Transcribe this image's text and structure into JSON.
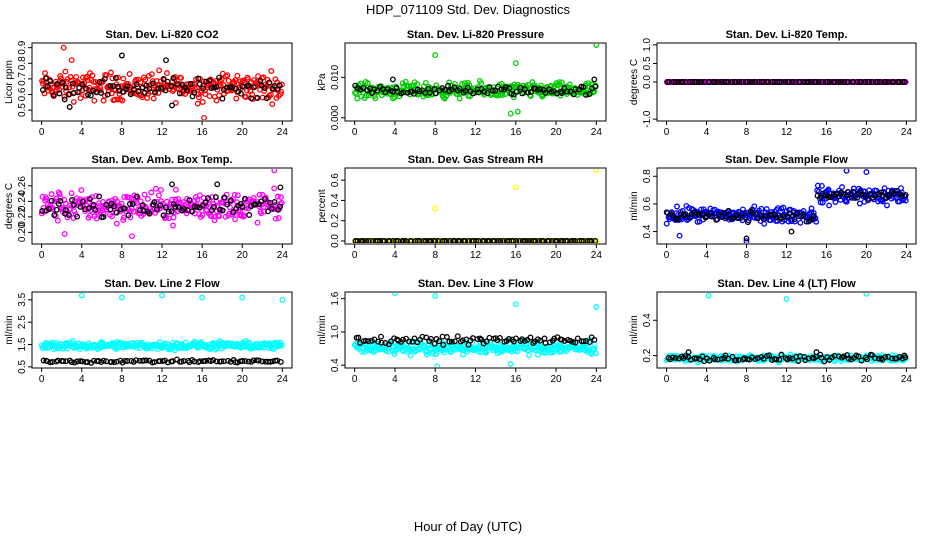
{
  "title": "HDP_071109  Std. Dev. Diagnostics",
  "xlabel": "Hour of Day (UTC)",
  "chart_data": [
    {
      "type": "scatter",
      "title": "Stan. Dev. Li-820 CO2",
      "ylabel": "Licor ppm",
      "xlim": [
        0,
        24
      ],
      "ylim": [
        0.43,
        0.93
      ],
      "x_ticks": [
        "0",
        "4",
        "8",
        "12",
        "16",
        "20",
        "24"
      ],
      "y_ticks": [
        "0.5",
        "0.6",
        "0.7",
        "0.8",
        "0.9"
      ],
      "y_tick_values": [
        0.5,
        0.6,
        0.7,
        0.8,
        0.9
      ],
      "series": [
        {
          "color": "#ff0000",
          "band": [
            0.52,
            0.78
          ],
          "outliers": [
            [
              2.2,
              0.9
            ],
            [
              16.2,
              0.45
            ],
            [
              3.0,
              0.82
            ]
          ]
        },
        {
          "color": "#000000",
          "band": [
            0.55,
            0.74
          ],
          "outliers": [
            [
              8.0,
              0.85
            ],
            [
              12.4,
              0.82
            ],
            [
              2.8,
              0.52
            ],
            [
              13.0,
              0.53
            ]
          ]
        }
      ]
    },
    {
      "type": "scatter",
      "title": "Stan. Dev. Li-820 Pressure",
      "ylabel": "kPa",
      "xlim": [
        0,
        24
      ],
      "ylim": [
        -0.0008,
        0.0185
      ],
      "x_ticks": [
        "0",
        "4",
        "8",
        "12",
        "16",
        "20",
        "24"
      ],
      "y_ticks": [
        "0.000",
        "0.010"
      ],
      "y_tick_values": [
        0.0,
        0.01
      ],
      "series": [
        {
          "color": "#00cc00",
          "band": [
            0.004,
            0.0095
          ],
          "outliers": [
            [
              8.0,
              0.0155
            ],
            [
              24.0,
              0.018
            ],
            [
              16.0,
              0.0135
            ],
            [
              15.5,
              0.001
            ],
            [
              16.2,
              0.0015
            ]
          ]
        },
        {
          "color": "#000000",
          "band": [
            0.005,
            0.0085
          ],
          "outliers": [
            [
              3.8,
              0.0095
            ],
            [
              23.8,
              0.0095
            ]
          ]
        }
      ]
    },
    {
      "type": "scatter",
      "title": "Stan. Dev. Li-820 Temp.",
      "ylabel": "degrees C",
      "xlim": [
        0,
        24
      ],
      "ylim": [
        -1.05,
        1.05
      ],
      "x_ticks": [
        "0",
        "4",
        "8",
        "12",
        "16",
        "20",
        "24"
      ],
      "y_ticks": [
        "-1.0",
        "0.0",
        "0.5",
        "1.0"
      ],
      "y_tick_values": [
        -1.0,
        0.0,
        0.5,
        1.0
      ],
      "series": [
        {
          "color": "#ff00ff",
          "band": [
            0.0,
            0.0
          ],
          "outliers": []
        },
        {
          "color": "#000000",
          "band": [
            0.0,
            0.0
          ],
          "outliers": []
        }
      ]
    },
    {
      "type": "scatter",
      "title": "Stan. Dev. Amb. Box Temp.",
      "ylabel": "degrees C",
      "xlim": [
        0,
        24
      ],
      "ylim": [
        0.185,
        0.283
      ],
      "x_ticks": [
        "0",
        "4",
        "8",
        "12",
        "16",
        "20",
        "24"
      ],
      "y_ticks": [
        "0.20",
        "0.22",
        "0.24",
        "0.26"
      ],
      "y_tick_values": [
        0.2,
        0.22,
        0.24,
        0.26
      ],
      "series": [
        {
          "color": "#ff00ff",
          "band": [
            0.205,
            0.262
          ],
          "outliers": [
            [
              23.2,
              0.28
            ],
            [
              9.0,
              0.195
            ],
            [
              2.3,
              0.198
            ]
          ]
        },
        {
          "color": "#000000",
          "band": [
            0.215,
            0.25
          ],
          "outliers": [
            [
              23.8,
              0.258
            ],
            [
              13.0,
              0.262
            ],
            [
              17.5,
              0.262
            ]
          ]
        }
      ]
    },
    {
      "type": "scatter",
      "title": "Stan. Dev. Gas Stream RH",
      "ylabel": "percent",
      "xlim": [
        0,
        24
      ],
      "ylim": [
        -0.03,
        0.72
      ],
      "x_ticks": [
        "0",
        "4",
        "8",
        "12",
        "16",
        "20",
        "24"
      ],
      "y_ticks": [
        "0.0",
        "0.2",
        "0.4",
        "0.6"
      ],
      "y_tick_values": [
        0.0,
        0.2,
        0.4,
        0.6
      ],
      "series": [
        {
          "color": "#ffff00",
          "band": [
            0.0,
            0.0
          ],
          "outliers": [
            [
              8.0,
              0.32
            ],
            [
              16.0,
              0.53
            ],
            [
              24.0,
              0.7
            ],
            [
              0.1,
              0.0
            ]
          ]
        },
        {
          "color": "#000000",
          "band": [
            0.0,
            0.0
          ],
          "outliers": []
        }
      ]
    },
    {
      "type": "scatter",
      "title": "Stan. Dev. Sample Flow",
      "ylabel": "ml/min",
      "xlim": [
        0,
        24
      ],
      "ylim": [
        0.31,
        0.86
      ],
      "x_ticks": [
        "0",
        "4",
        "8",
        "12",
        "16",
        "20",
        "24"
      ],
      "y_ticks": [
        "0.4",
        "0.6",
        "0.8"
      ],
      "y_tick_values": [
        0.4,
        0.6,
        0.8
      ],
      "series": [
        {
          "color": "#0000ff",
          "band_segments": [
            [
              0,
              15,
              0.44,
              0.6
            ],
            [
              15,
              24,
              0.56,
              0.76
            ]
          ],
          "outliers": [
            [
              8.0,
              0.33
            ],
            [
              1.3,
              0.37
            ],
            [
              18.0,
              0.84
            ],
            [
              20.0,
              0.83
            ]
          ]
        },
        {
          "color": "#000000",
          "band_segments": [
            [
              0,
              15,
              0.46,
              0.57
            ],
            [
              15,
              24,
              0.6,
              0.72
            ]
          ],
          "outliers": [
            [
              8.0,
              0.35
            ],
            [
              12.5,
              0.4
            ]
          ]
        }
      ]
    },
    {
      "type": "scatter",
      "title": "Stan. Dev. Line 2 Flow",
      "ylabel": "ml/min",
      "xlim": [
        0,
        24
      ],
      "ylim": [
        0.45,
        3.85
      ],
      "x_ticks": [
        "0",
        "4",
        "8",
        "12",
        "16",
        "20",
        "24"
      ],
      "y_ticks": [
        "0.5",
        "1.5",
        "2.5",
        "3.5"
      ],
      "y_tick_values": [
        0.5,
        1.5,
        2.5,
        3.5
      ],
      "series": [
        {
          "color": "#00ffff",
          "band": [
            1.2,
            1.7
          ],
          "outliers": [
            [
              4.0,
              3.7
            ],
            [
              8.0,
              3.6
            ],
            [
              12.0,
              3.7
            ],
            [
              16.0,
              3.6
            ],
            [
              20.0,
              3.6
            ],
            [
              24.0,
              3.5
            ]
          ]
        },
        {
          "color": "#000000",
          "band": [
            0.65,
            0.85
          ],
          "outliers": []
        }
      ]
    },
    {
      "type": "scatter",
      "title": "Stan. Dev. Line 3 Flow",
      "ylabel": "ml/min",
      "xlim": [
        0,
        24
      ],
      "ylim": [
        0.35,
        1.72
      ],
      "x_ticks": [
        "0",
        "4",
        "8",
        "12",
        "16",
        "20",
        "24"
      ],
      "y_ticks": [
        "0.4",
        "1.0",
        "1.6"
      ],
      "y_tick_values": [
        0.4,
        1.0,
        1.6
      ],
      "series": [
        {
          "color": "#00ffff",
          "band": [
            0.55,
            0.88
          ],
          "outliers": [
            [
              4.0,
              1.7
            ],
            [
              8.0,
              1.65
            ],
            [
              16.0,
              1.5
            ],
            [
              24.0,
              1.45
            ],
            [
              8.2,
              0.38
            ],
            [
              15.5,
              0.42
            ]
          ]
        },
        {
          "color": "#000000",
          "band": [
            0.75,
            0.95
          ],
          "outliers": []
        }
      ]
    },
    {
      "type": "scatter",
      "title": "Stan. Dev. Line 4 (LT) Flow",
      "ylabel": "ml/min",
      "xlim": [
        0,
        24
      ],
      "ylim": [
        0.13,
        0.56
      ],
      "x_ticks": [
        "0",
        "4",
        "8",
        "12",
        "16",
        "20",
        "24"
      ],
      "y_ticks": [
        "0.2",
        "0.4"
      ],
      "y_tick_values": [
        0.2,
        0.4
      ],
      "series": [
        {
          "color": "#00ffff",
          "band": [
            0.16,
            0.21
          ],
          "outliers": [
            [
              4.2,
              0.54
            ],
            [
              12.0,
              0.52
            ],
            [
              20.0,
              0.55
            ]
          ]
        },
        {
          "color": "#000000",
          "band": [
            0.16,
            0.21
          ],
          "outliers": [
            [
              2.2,
              0.22
            ],
            [
              15.0,
              0.22
            ],
            [
              23.8,
              0.2
            ]
          ]
        }
      ]
    }
  ]
}
